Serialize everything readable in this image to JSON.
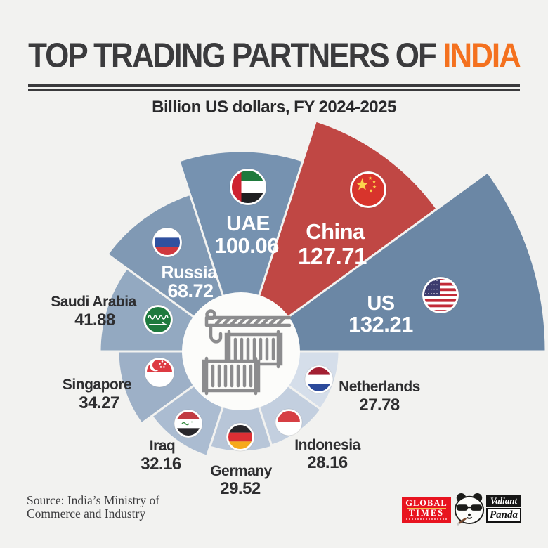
{
  "page": {
    "background": "#f2f2f0"
  },
  "header": {
    "title": {
      "prefix": "TOP TRADING PARTNERS OF ",
      "highlight": "INDIA",
      "text_color": "#3b3b3d",
      "highlight_color": "#f4711f"
    },
    "subtitle": "Billion US dollars, FY 2024-2025"
  },
  "chart_data": {
    "type": "rose",
    "title": "Top trading partners of India",
    "unit": "Billion US dollars",
    "period": "FY 2024-2025",
    "legend_position": "none",
    "highlight_country": "China",
    "highlight_color": "#c04744",
    "center_icon": "container-crane",
    "series": [
      {
        "country": "US",
        "value": 132.21,
        "color": "#6b87a5",
        "flag": "us"
      },
      {
        "country": "China",
        "value": 127.71,
        "color": "#c04744",
        "flag": "china"
      },
      {
        "country": "UAE",
        "value": 100.06,
        "color": "#7692b0",
        "flag": "uae"
      },
      {
        "country": "Russia",
        "value": 68.72,
        "color": "#8099b4",
        "flag": "russia"
      },
      {
        "country": "Saudi Arabia",
        "value": 41.88,
        "color": "#93a9c1",
        "flag": "saudi-arabia"
      },
      {
        "country": "Singapore",
        "value": 34.27,
        "color": "#9db0c7",
        "flag": "singapore"
      },
      {
        "country": "Iraq",
        "value": 32.16,
        "color": "#abbcd1",
        "flag": "iraq"
      },
      {
        "country": "Germany",
        "value": 29.52,
        "color": "#b8c6d8",
        "flag": "germany"
      },
      {
        "country": "Indonesia",
        "value": 28.16,
        "color": "#c3cfdf",
        "flag": "indonesia"
      },
      {
        "country": "Netherlands",
        "value": 27.78,
        "color": "#d5deea",
        "flag": "netherlands"
      }
    ]
  },
  "footer": {
    "source_line1": "Source: India’s Ministry of",
    "source_line2": "Commerce and Industry"
  },
  "logos": {
    "global_times": {
      "line1": "GLOBAL",
      "line2": "TIMES",
      "bg": "#e8141f"
    },
    "valiant_panda": {
      "line1": "Valiant",
      "line2": "Panda"
    }
  }
}
